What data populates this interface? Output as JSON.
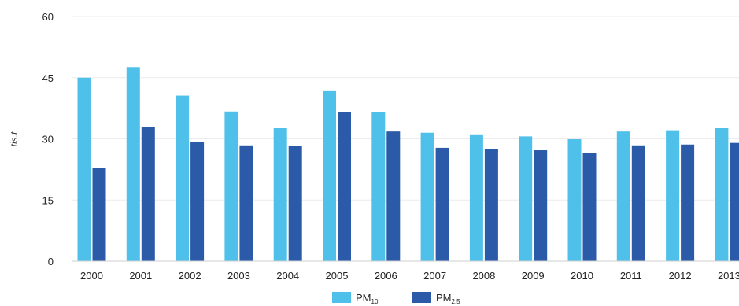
{
  "chart_data": {
    "type": "bar",
    "title": "",
    "xlabel": "",
    "ylabel": "tis.t",
    "ylim": [
      0,
      60
    ],
    "yticks": [
      0,
      15,
      30,
      45,
      60
    ],
    "grid": true,
    "legend_position": "bottom-center",
    "categories": [
      "2000",
      "2001",
      "2002",
      "2003",
      "2004",
      "2005",
      "2006",
      "2007",
      "2008",
      "2009",
      "2010",
      "2011",
      "2012",
      "2013"
    ],
    "series": [
      {
        "name": "PM10",
        "name_main": "PM",
        "name_sub": "10",
        "color": "#4fc0ea",
        "values": [
          45.0,
          47.6,
          40.6,
          36.7,
          32.6,
          41.7,
          36.5,
          31.5,
          31.1,
          30.6,
          29.9,
          31.8,
          32.1,
          32.6
        ]
      },
      {
        "name": "PM2.5",
        "name_main": "PM",
        "name_sub": "2.5",
        "color": "#2b5ba8",
        "values": [
          22.9,
          32.9,
          29.3,
          28.4,
          28.2,
          36.6,
          31.8,
          27.8,
          27.5,
          27.2,
          26.6,
          28.4,
          28.6,
          29.0
        ]
      }
    ]
  }
}
